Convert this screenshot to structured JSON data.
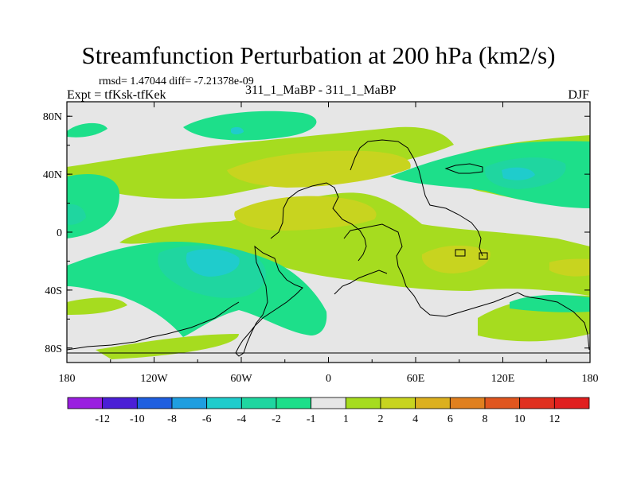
{
  "chart_data": {
    "type": "heatmap",
    "title": "Streamfunction Perturbation at 200 hPa (km2/s)",
    "stats_text": "rmsd= 1.47044  diff= -7.21378e-09",
    "left_label": "Expt = tfKsk-tfKek",
    "center_label": "311_1_MaBP - 311_1_MaBP",
    "right_label": "DJF",
    "x_ticks": [
      "180",
      "120W",
      "60W",
      "0",
      "60E",
      "120E",
      "180"
    ],
    "y_ticks": [
      "80N",
      "40N",
      "0",
      "40S",
      "80S"
    ],
    "xlim": [
      -180,
      180
    ],
    "ylim": [
      -90,
      90
    ],
    "colorbar": {
      "labels": [
        "-12",
        "-10",
        "-8",
        "-6",
        "-4",
        "-2",
        "-1",
        "1",
        "2",
        "4",
        "6",
        "8",
        "10",
        "12"
      ],
      "colors": [
        "#9a1fe0",
        "#4b1fd6",
        "#1f5fe0",
        "#1f9ee0",
        "#1fcccc",
        "#1fd6a0",
        "#1ddf8a",
        "#e6e6e6",
        "#a6dc1f",
        "#c8d41f",
        "#dcb01f",
        "#e0801f",
        "#e0561f",
        "#e0301f",
        "#e01f1f"
      ]
    }
  }
}
